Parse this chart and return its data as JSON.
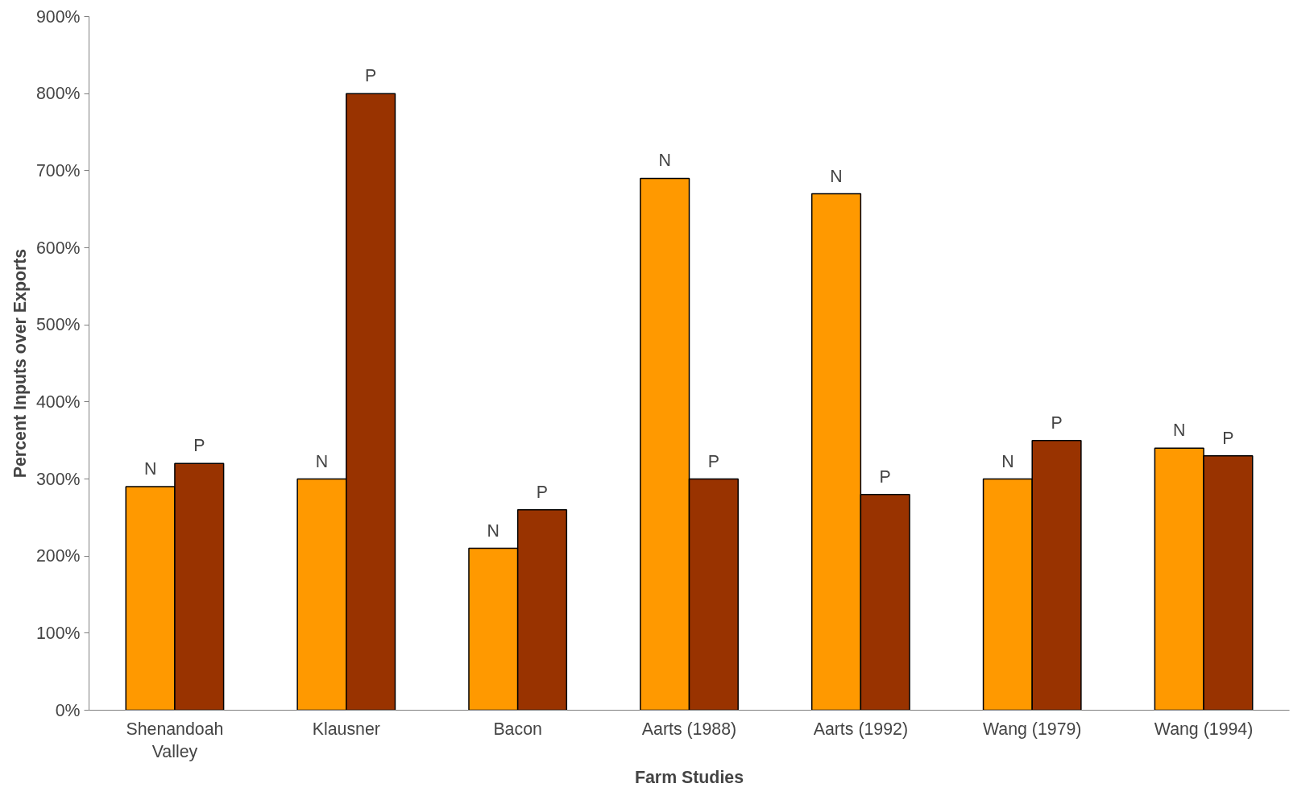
{
  "chart_data": {
    "type": "bar",
    "xlabel": "Farm Studies",
    "ylabel": "Percent Inputs over Exports",
    "categories": [
      "Shenandoah Valley",
      "Klausner",
      "Bacon",
      "Aarts (1988)",
      "Aarts (1992)",
      "Wang (1979)",
      "Wang (1994)"
    ],
    "series": [
      {
        "name": "N",
        "color": "#ff9900",
        "values": [
          290,
          300,
          210,
          690,
          670,
          300,
          340
        ]
      },
      {
        "name": "P",
        "color": "#993300",
        "values": [
          320,
          800,
          260,
          300,
          280,
          350,
          330
        ]
      }
    ],
    "ylim": [
      0,
      900
    ],
    "yticks": [
      {
        "value": 0,
        "label": "0%"
      },
      {
        "value": 100,
        "label": "100%"
      },
      {
        "value": 200,
        "label": "200%"
      },
      {
        "value": 300,
        "label": "300%"
      },
      {
        "value": 400,
        "label": "400%"
      },
      {
        "value": 500,
        "label": "500%"
      },
      {
        "value": 600,
        "label": "600%"
      },
      {
        "value": 700,
        "label": "700%"
      },
      {
        "value": 800,
        "label": "800%"
      },
      {
        "value": 900,
        "label": "900%"
      }
    ],
    "grid": false
  }
}
